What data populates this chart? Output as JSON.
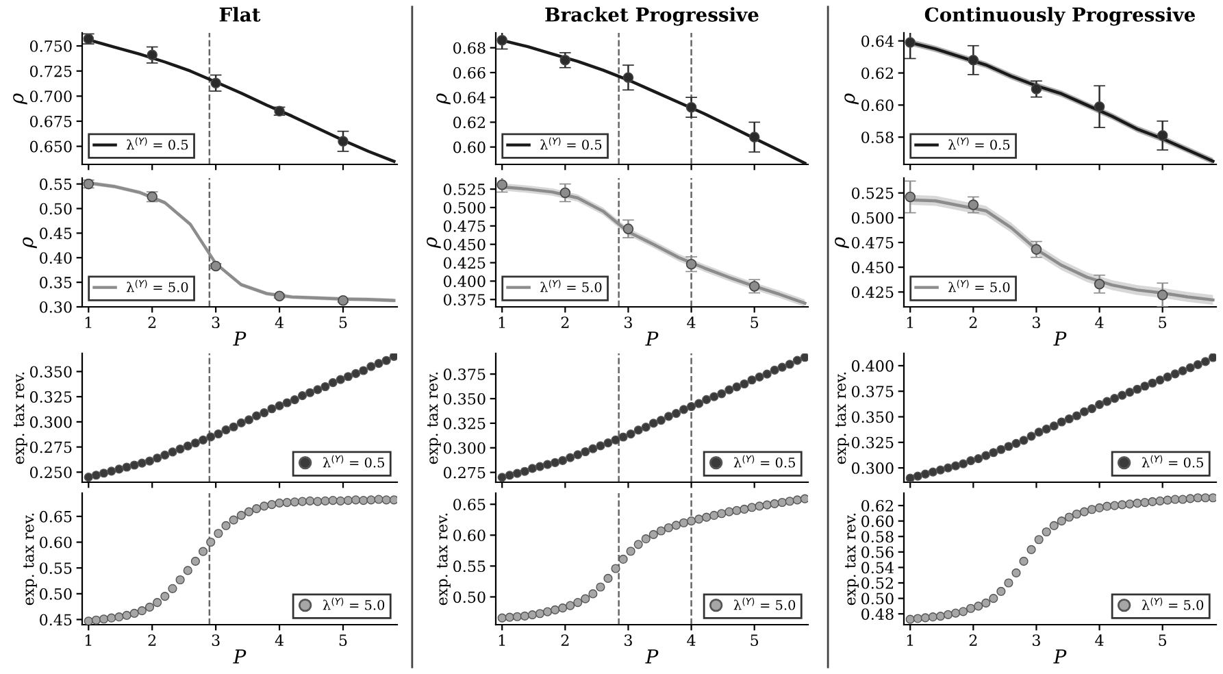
{
  "chart_data": [
    {
      "type": "line",
      "title": "Flat",
      "ylabel": "ρ",
      "xlim": [
        0.9,
        5.85
      ],
      "xticks": [
        1,
        2,
        3,
        4,
        5
      ],
      "ylim": [
        0.632,
        0.763
      ],
      "yticks": [
        {
          "value": 0.65,
          "label": "0.650"
        },
        0.675,
        {
          "value": 0.7,
          "label": "0.700"
        },
        0.725,
        {
          "value": 0.75,
          "label": "0.750"
        }
      ],
      "tick_labels": "y",
      "legend": "bottom left",
      "ref_lines": [
        {
          "axis": "x",
          "value": 2.9,
          "color": "#666666",
          "line_style": "dashed"
        }
      ],
      "series": [
        {
          "type": "line",
          "name": "λ$^{(Y)}$ = 0.5",
          "color": "#1a1a1a",
          "x": [
            1,
            1.4,
            1.8,
            2.2,
            2.6,
            3,
            3.4,
            3.8,
            4.2,
            4.6,
            5,
            5.4,
            5.8
          ],
          "values": [
            0.756,
            0.749,
            0.742,
            0.734,
            0.725,
            0.714,
            0.703,
            0.691,
            0.68,
            0.668,
            0.656,
            0.645,
            0.635
          ]
        },
        {
          "type": "scatter",
          "marker": "circle",
          "color": "#2b2b2b",
          "x": [
            1,
            2,
            3,
            4,
            5
          ],
          "values": [
            0.757,
            0.741,
            0.713,
            0.685,
            0.655
          ],
          "errors": [
            0.005,
            0.008,
            0.008,
            0.004,
            0.01
          ]
        }
      ]
    },
    {
      "type": "line",
      "title": "Bracket Progressive",
      "ylabel": "ρ",
      "xlim": [
        0.9,
        5.85
      ],
      "xticks": [
        1,
        2,
        3,
        4,
        5
      ],
      "ylim": [
        0.586,
        0.692
      ],
      "yticks": [
        {
          "value": 0.6,
          "label": "0.60"
        },
        0.62,
        0.64,
        0.66,
        0.68
      ],
      "tick_labels": "y",
      "legend": "bottom left",
      "ref_lines": [
        {
          "axis": "x",
          "value": 2.85,
          "color": "#666666",
          "line_style": "dashed"
        },
        {
          "axis": "x",
          "value": 4.0,
          "color": "#666666",
          "line_style": "dashed"
        }
      ],
      "series": [
        {
          "type": "line",
          "name": "λ$^{(Y)}$ = 0.5",
          "color": "#1a1a1a",
          "x": [
            1,
            1.4,
            1.8,
            2.2,
            2.6,
            3,
            3.4,
            3.8,
            4.2,
            4.6,
            5,
            5.4,
            5.8
          ],
          "values": [
            0.686,
            0.681,
            0.675,
            0.669,
            0.662,
            0.654,
            0.645,
            0.636,
            0.627,
            0.617,
            0.607,
            0.597,
            0.587
          ]
        },
        {
          "type": "scatter",
          "marker": "circle",
          "color": "#2b2b2b",
          "x": [
            1,
            2,
            3,
            4,
            5
          ],
          "values": [
            0.686,
            0.67,
            0.656,
            0.632,
            0.608
          ],
          "errors": [
            0.007,
            0.006,
            0.01,
            0.008,
            0.012
          ]
        }
      ]
    },
    {
      "type": "line",
      "title": "Continuously Progressive",
      "ylabel": "ρ",
      "xlim": [
        0.9,
        5.85
      ],
      "xticks": [
        1,
        2,
        3,
        4,
        5
      ],
      "ylim": [
        0.563,
        0.645
      ],
      "yticks": [
        0.58,
        {
          "value": 0.6,
          "label": "0.60"
        },
        0.62,
        0.64
      ],
      "tick_labels": "y",
      "legend": "bottom left",
      "series": [
        {
          "type": "line",
          "name": "λ$^{(Y)}$ = 0.5",
          "color": "#1a1a1a",
          "x": [
            1,
            1.4,
            1.8,
            2.2,
            2.6,
            3,
            3.4,
            3.8,
            4.2,
            4.6,
            5,
            5.4,
            5.8
          ],
          "values": [
            0.639,
            0.635,
            0.63,
            0.625,
            0.618,
            0.612,
            0.607,
            0.6,
            0.593,
            0.585,
            0.579,
            0.572,
            0.565
          ],
          "lower": [
            0.637,
            0.633,
            0.628,
            0.623,
            0.616,
            0.61,
            0.605,
            0.598,
            0.591,
            0.583,
            0.577,
            0.57,
            0.563
          ],
          "upper": [
            0.641,
            0.637,
            0.632,
            0.627,
            0.62,
            0.614,
            0.609,
            0.602,
            0.595,
            0.587,
            0.581,
            0.574,
            0.567
          ]
        },
        {
          "type": "scatter",
          "marker": "circle",
          "color": "#2b2b2b",
          "x": [
            1,
            2,
            3,
            4,
            5
          ],
          "values": [
            0.639,
            0.628,
            0.61,
            0.599,
            0.581
          ],
          "errors": [
            0.01,
            0.009,
            0.005,
            0.013,
            0.009
          ]
        }
      ]
    },
    {
      "type": "line",
      "xlabel": "P",
      "ylabel": "ρ",
      "xlim": [
        0.9,
        5.85
      ],
      "xticks": [
        1,
        2,
        3,
        4,
        5
      ],
      "ylim": [
        0.3,
        0.562
      ],
      "yticks": [
        {
          "value": 0.3,
          "label": "0.30"
        },
        0.35,
        {
          "value": 0.4,
          "label": "0.40"
        },
        0.45,
        {
          "value": 0.5,
          "label": "0.50"
        },
        0.55
      ],
      "legend": "bottom left",
      "ref_lines": [
        {
          "axis": "x",
          "value": 2.9,
          "color": "#666666",
          "line_style": "dashed"
        }
      ],
      "series": [
        {
          "type": "line",
          "name": "λ$^{(Y)}$ = 5.0",
          "color": "#8c8c8c",
          "x": [
            1,
            1.4,
            1.8,
            2.2,
            2.6,
            3,
            3.4,
            3.8,
            4.2,
            4.6,
            5,
            5.4,
            5.8
          ],
          "values": [
            0.552,
            0.545,
            0.533,
            0.512,
            0.468,
            0.388,
            0.345,
            0.327,
            0.32,
            0.318,
            0.316,
            0.315,
            0.313
          ],
          "lower": [
            0.548,
            0.541,
            0.529,
            0.508,
            0.464,
            0.384,
            0.341,
            0.323,
            0.316,
            0.314,
            0.312,
            0.311,
            0.309
          ],
          "upper": [
            0.556,
            0.549,
            0.537,
            0.516,
            0.472,
            0.392,
            0.349,
            0.331,
            0.324,
            0.322,
            0.32,
            0.319,
            0.317
          ]
        },
        {
          "type": "scatter",
          "marker": "circle",
          "color": "#8c8c8c",
          "x": [
            1,
            2,
            3,
            4,
            5
          ],
          "values": [
            0.55,
            0.524,
            0.383,
            0.322,
            0.313
          ],
          "errors": [
            0.008,
            0.01,
            0.005,
            0.004,
            0.003
          ]
        }
      ]
    },
    {
      "type": "line",
      "xlabel": "P",
      "ylabel": "ρ",
      "xlim": [
        0.9,
        5.85
      ],
      "xticks": [
        1,
        2,
        3,
        4,
        5
      ],
      "ylim": [
        0.365,
        0.54
      ],
      "yticks": [
        0.375,
        {
          "value": 0.4,
          "label": "0.400"
        },
        0.425,
        {
          "value": 0.45,
          "label": "0.450"
        },
        0.475,
        {
          "value": 0.5,
          "label": "0.500"
        },
        0.525
      ],
      "legend": "bottom left",
      "ref_lines": [
        {
          "axis": "x",
          "value": 2.85,
          "color": "#666666",
          "line_style": "dashed"
        },
        {
          "axis": "x",
          "value": 4.0,
          "color": "#666666",
          "line_style": "dashed"
        }
      ],
      "series": [
        {
          "type": "line",
          "name": "λ$^{(Y)}$ = 5.0",
          "color": "#8c8c8c",
          "x": [
            1,
            1.4,
            1.8,
            2.2,
            2.6,
            3,
            3.4,
            3.8,
            4.2,
            4.6,
            5,
            5.4,
            5.8
          ],
          "values": [
            0.528,
            0.525,
            0.521,
            0.513,
            0.495,
            0.467,
            0.45,
            0.432,
            0.418,
            0.405,
            0.393,
            0.382,
            0.37
          ],
          "lower": [
            0.523,
            0.52,
            0.516,
            0.508,
            0.49,
            0.462,
            0.445,
            0.427,
            0.413,
            0.4,
            0.388,
            0.377,
            0.365
          ],
          "upper": [
            0.533,
            0.53,
            0.526,
            0.518,
            0.5,
            0.472,
            0.455,
            0.437,
            0.423,
            0.41,
            0.398,
            0.387,
            0.375
          ]
        },
        {
          "type": "scatter",
          "marker": "circle",
          "color": "#8c8c8c",
          "x": [
            1,
            2,
            3,
            4,
            5
          ],
          "values": [
            0.531,
            0.52,
            0.471,
            0.423,
            0.393
          ],
          "errors": [
            0.01,
            0.012,
            0.012,
            0.01,
            0.009
          ]
        }
      ]
    },
    {
      "type": "line",
      "xlabel": "P",
      "ylabel": "ρ",
      "xlim": [
        0.9,
        5.85
      ],
      "xticks": [
        1,
        2,
        3,
        4,
        5
      ],
      "ylim": [
        0.41,
        0.54
      ],
      "yticks": [
        0.425,
        {
          "value": 0.45,
          "label": "0.450"
        },
        0.475,
        {
          "value": 0.5,
          "label": "0.500"
        },
        0.525
      ],
      "legend": "bottom left",
      "series": [
        {
          "type": "line",
          "name": "λ$^{(Y)}$ = 5.0",
          "color": "#8c8c8c",
          "x": [
            1,
            1.4,
            1.8,
            2.2,
            2.6,
            3,
            3.4,
            3.8,
            4.2,
            4.6,
            5,
            5.4,
            5.8
          ],
          "values": [
            0.518,
            0.517,
            0.512,
            0.507,
            0.49,
            0.468,
            0.452,
            0.44,
            0.432,
            0.427,
            0.424,
            0.42,
            0.417
          ],
          "lower": [
            0.513,
            0.512,
            0.507,
            0.502,
            0.485,
            0.463,
            0.447,
            0.435,
            0.427,
            0.422,
            0.419,
            0.415,
            0.412
          ],
          "upper": [
            0.523,
            0.522,
            0.517,
            0.512,
            0.495,
            0.473,
            0.457,
            0.445,
            0.437,
            0.432,
            0.429,
            0.425,
            0.422
          ]
        },
        {
          "type": "scatter",
          "marker": "circle",
          "color": "#8c8c8c",
          "x": [
            1,
            2,
            3,
            4,
            5
          ],
          "values": [
            0.521,
            0.513,
            0.468,
            0.433,
            0.422
          ],
          "errors": [
            0.016,
            0.008,
            0.008,
            0.009,
            0.012
          ]
        }
      ]
    },
    {
      "type": "scatter",
      "ylabel": "exp. tax rev.",
      "marker": "circle",
      "xlim": [
        0.9,
        5.85
      ],
      "xticks": [
        1,
        2,
        3,
        4,
        5
      ],
      "ylim": [
        0.24,
        0.368
      ],
      "yticks": [
        {
          "value": 0.25,
          "label": "0.250"
        },
        0.275,
        {
          "value": 0.3,
          "label": "0.300"
        },
        0.325,
        {
          "value": 0.35,
          "label": "0.350"
        }
      ],
      "tick_labels": "y",
      "legend": "bottom right",
      "ref_lines": [
        {
          "axis": "x",
          "value": 2.9,
          "color": "#666666",
          "line_style": "dashed"
        }
      ],
      "x": [
        1,
        1.12,
        1.24,
        1.36,
        1.48,
        1.6,
        1.72,
        1.84,
        1.96,
        2.08,
        2.2,
        2.32,
        2.44,
        2.56,
        2.68,
        2.8,
        2.92,
        3.04,
        3.16,
        3.28,
        3.4,
        3.52,
        3.64,
        3.76,
        3.88,
        4,
        4.12,
        4.24,
        4.36,
        4.48,
        4.6,
        4.72,
        4.84,
        4.96,
        5.08,
        5.2,
        5.32,
        5.44,
        5.56,
        5.68,
        5.8
      ],
      "series": [
        {
          "name": "λ$^{(Y)}$ = 0.5",
          "color": "#3a3a3a",
          "values": [
            0.245,
            0.247,
            0.249,
            0.251,
            0.253,
            0.255,
            0.257,
            0.259,
            0.261,
            0.264,
            0.267,
            0.27,
            0.273,
            0.276,
            0.279,
            0.282,
            0.285,
            0.288,
            0.292,
            0.295,
            0.299,
            0.302,
            0.306,
            0.309,
            0.313,
            0.316,
            0.319,
            0.322,
            0.326,
            0.329,
            0.332,
            0.335,
            0.339,
            0.342,
            0.345,
            0.348,
            0.351,
            0.355,
            0.358,
            0.361,
            0.365
          ]
        }
      ]
    },
    {
      "type": "scatter",
      "ylabel": "exp. tax rev.",
      "marker": "circle",
      "xlim": [
        0.9,
        5.85
      ],
      "xticks": [
        1,
        2,
        3,
        4,
        5
      ],
      "ylim": [
        0.265,
        0.396
      ],
      "yticks": [
        0.275,
        {
          "value": 0.3,
          "label": "0.300"
        },
        0.325,
        {
          "value": 0.35,
          "label": "0.350"
        },
        0.375
      ],
      "tick_labels": "y",
      "legend": "bottom right",
      "ref_lines": [
        {
          "axis": "x",
          "value": 2.85,
          "color": "#666666",
          "line_style": "dashed"
        },
        {
          "axis": "x",
          "value": 4.0,
          "color": "#666666",
          "line_style": "dashed"
        }
      ],
      "x": [
        1,
        1.12,
        1.24,
        1.36,
        1.48,
        1.6,
        1.72,
        1.84,
        1.96,
        2.08,
        2.2,
        2.32,
        2.44,
        2.56,
        2.68,
        2.8,
        2.92,
        3.04,
        3.16,
        3.28,
        3.4,
        3.52,
        3.64,
        3.76,
        3.88,
        4,
        4.12,
        4.24,
        4.36,
        4.48,
        4.6,
        4.72,
        4.84,
        4.96,
        5.08,
        5.2,
        5.32,
        5.44,
        5.56,
        5.68,
        5.8
      ],
      "series": [
        {
          "name": "λ$^{(Y)}$ = 0.5",
          "color": "#3a3a3a",
          "values": [
            0.27,
            0.272,
            0.274,
            0.276,
            0.279,
            0.281,
            0.283,
            0.285,
            0.287,
            0.29,
            0.293,
            0.296,
            0.299,
            0.302,
            0.305,
            0.308,
            0.311,
            0.314,
            0.318,
            0.321,
            0.325,
            0.328,
            0.332,
            0.335,
            0.339,
            0.342,
            0.345,
            0.349,
            0.352,
            0.355,
            0.359,
            0.362,
            0.365,
            0.369,
            0.372,
            0.375,
            0.379,
            0.382,
            0.385,
            0.389,
            0.392
          ]
        }
      ]
    },
    {
      "type": "scatter",
      "ylabel": "exp. tax rev.",
      "marker": "circle",
      "xlim": [
        0.9,
        5.85
      ],
      "xticks": [
        1,
        2,
        3,
        4,
        5
      ],
      "ylim": [
        0.286,
        0.412
      ],
      "yticks": [
        {
          "value": 0.3,
          "label": "0.300"
        },
        0.325,
        {
          "value": 0.35,
          "label": "0.350"
        },
        0.375,
        {
          "value": 0.4,
          "label": "0.400"
        }
      ],
      "tick_labels": "y",
      "legend": "bottom right",
      "x": [
        1,
        1.12,
        1.24,
        1.36,
        1.48,
        1.6,
        1.72,
        1.84,
        1.96,
        2.08,
        2.2,
        2.32,
        2.44,
        2.56,
        2.68,
        2.8,
        2.92,
        3.04,
        3.16,
        3.28,
        3.4,
        3.52,
        3.64,
        3.76,
        3.88,
        4,
        4.12,
        4.24,
        4.36,
        4.48,
        4.6,
        4.72,
        4.84,
        4.96,
        5.08,
        5.2,
        5.32,
        5.44,
        5.56,
        5.68,
        5.8
      ],
      "series": [
        {
          "name": "λ$^{(Y)}$ = 0.5",
          "color": "#3a3a3a",
          "values": [
            0.29,
            0.292,
            0.294,
            0.296,
            0.298,
            0.3,
            0.302,
            0.304,
            0.307,
            0.309,
            0.312,
            0.315,
            0.318,
            0.321,
            0.324,
            0.327,
            0.331,
            0.335,
            0.338,
            0.341,
            0.345,
            0.348,
            0.351,
            0.355,
            0.358,
            0.362,
            0.365,
            0.368,
            0.371,
            0.374,
            0.377,
            0.38,
            0.383,
            0.386,
            0.389,
            0.392,
            0.395,
            0.398,
            0.401,
            0.404,
            0.408
          ]
        }
      ]
    },
    {
      "type": "scatter",
      "xlabel": "P",
      "ylabel": "exp. tax rev.",
      "marker": "circle",
      "xlim": [
        0.9,
        5.85
      ],
      "xticks": [
        1,
        2,
        3,
        4,
        5
      ],
      "ylim": [
        0.44,
        0.695
      ],
      "yticks": [
        0.45,
        {
          "value": 0.5,
          "label": "0.50"
        },
        0.55,
        {
          "value": 0.6,
          "label": "0.60"
        },
        0.65
      ],
      "legend": "bottom right",
      "ref_lines": [
        {
          "axis": "x",
          "value": 2.9,
          "color": "#666666",
          "line_style": "dashed"
        }
      ],
      "x": [
        1,
        1.12,
        1.24,
        1.36,
        1.48,
        1.6,
        1.72,
        1.84,
        1.96,
        2.08,
        2.2,
        2.32,
        2.44,
        2.56,
        2.68,
        2.8,
        2.92,
        3.04,
        3.16,
        3.28,
        3.4,
        3.52,
        3.64,
        3.76,
        3.88,
        4,
        4.12,
        4.24,
        4.36,
        4.48,
        4.6,
        4.72,
        4.84,
        4.96,
        5.08,
        5.2,
        5.32,
        5.44,
        5.56,
        5.68,
        5.8
      ],
      "series": [
        {
          "name": "λ$^{(Y)}$ = 5.0",
          "color": "#a6a6a6",
          "values": [
            0.447,
            0.449,
            0.451,
            0.453,
            0.455,
            0.458,
            0.462,
            0.467,
            0.474,
            0.483,
            0.495,
            0.51,
            0.527,
            0.545,
            0.563,
            0.582,
            0.6,
            0.617,
            0.632,
            0.643,
            0.652,
            0.659,
            0.665,
            0.67,
            0.673,
            0.676,
            0.677,
            0.678,
            0.679,
            0.68,
            0.679,
            0.68,
            0.681,
            0.68,
            0.681,
            0.682,
            0.681,
            0.682,
            0.683,
            0.682,
            0.682
          ]
        }
      ]
    },
    {
      "type": "scatter",
      "xlabel": "P",
      "ylabel": "exp. tax rev.",
      "marker": "circle",
      "xlim": [
        0.9,
        5.85
      ],
      "xticks": [
        1,
        2,
        3,
        4,
        5
      ],
      "ylim": [
        0.455,
        0.668
      ],
      "yticks": [
        {
          "value": 0.5,
          "label": "0.50"
        },
        0.55,
        {
          "value": 0.6,
          "label": "0.60"
        },
        0.65
      ],
      "legend": "bottom right",
      "ref_lines": [
        {
          "axis": "x",
          "value": 2.85,
          "color": "#666666",
          "line_style": "dashed"
        },
        {
          "axis": "x",
          "value": 4.0,
          "color": "#666666",
          "line_style": "dashed"
        }
      ],
      "x": [
        1,
        1.12,
        1.24,
        1.36,
        1.48,
        1.6,
        1.72,
        1.84,
        1.96,
        2.08,
        2.2,
        2.32,
        2.44,
        2.56,
        2.68,
        2.8,
        2.92,
        3.04,
        3.16,
        3.28,
        3.4,
        3.52,
        3.64,
        3.76,
        3.88,
        4,
        4.12,
        4.24,
        4.36,
        4.48,
        4.6,
        4.72,
        4.84,
        4.96,
        5.08,
        5.2,
        5.32,
        5.44,
        5.56,
        5.68,
        5.8
      ],
      "series": [
        {
          "name": "λ$^{(Y)}$ = 5.0",
          "color": "#a6a6a6",
          "values": [
            0.466,
            0.467,
            0.468,
            0.469,
            0.471,
            0.473,
            0.476,
            0.479,
            0.482,
            0.486,
            0.491,
            0.497,
            0.505,
            0.516,
            0.53,
            0.546,
            0.561,
            0.574,
            0.585,
            0.594,
            0.601,
            0.607,
            0.612,
            0.616,
            0.62,
            0.623,
            0.626,
            0.629,
            0.632,
            0.635,
            0.638,
            0.64,
            0.642,
            0.645,
            0.647,
            0.649,
            0.651,
            0.653,
            0.655,
            0.657,
            0.659
          ]
        }
      ]
    },
    {
      "type": "scatter",
      "xlabel": "P",
      "ylabel": "exp. tax rev.",
      "marker": "circle",
      "xlim": [
        0.9,
        5.85
      ],
      "xticks": [
        1,
        2,
        3,
        4,
        5
      ],
      "ylim": [
        0.466,
        0.636
      ],
      "yticks": [
        0.48,
        {
          "value": 0.5,
          "label": "0.50"
        },
        0.52,
        0.54,
        0.56,
        0.58,
        {
          "value": 0.6,
          "label": "0.60"
        },
        0.62
      ],
      "legend": "bottom right",
      "x": [
        1,
        1.12,
        1.24,
        1.36,
        1.48,
        1.6,
        1.72,
        1.84,
        1.96,
        2.08,
        2.2,
        2.32,
        2.44,
        2.56,
        2.68,
        2.8,
        2.92,
        3.04,
        3.16,
        3.28,
        3.4,
        3.52,
        3.64,
        3.76,
        3.88,
        4,
        4.12,
        4.24,
        4.36,
        4.48,
        4.6,
        4.72,
        4.84,
        4.96,
        5.08,
        5.2,
        5.32,
        5.44,
        5.56,
        5.68,
        5.8
      ],
      "series": [
        {
          "name": "λ$^{(Y)}$ = 5.0",
          "color": "#a6a6a6",
          "values": [
            0.473,
            0.474,
            0.475,
            0.476,
            0.477,
            0.479,
            0.481,
            0.483,
            0.487,
            0.49,
            0.494,
            0.5,
            0.509,
            0.52,
            0.533,
            0.548,
            0.563,
            0.576,
            0.586,
            0.594,
            0.6,
            0.605,
            0.609,
            0.612,
            0.615,
            0.617,
            0.619,
            0.62,
            0.621,
            0.622,
            0.623,
            0.624,
            0.625,
            0.626,
            0.627,
            0.628,
            0.628,
            0.629,
            0.63,
            0.63,
            0.63
          ]
        }
      ]
    }
  ]
}
